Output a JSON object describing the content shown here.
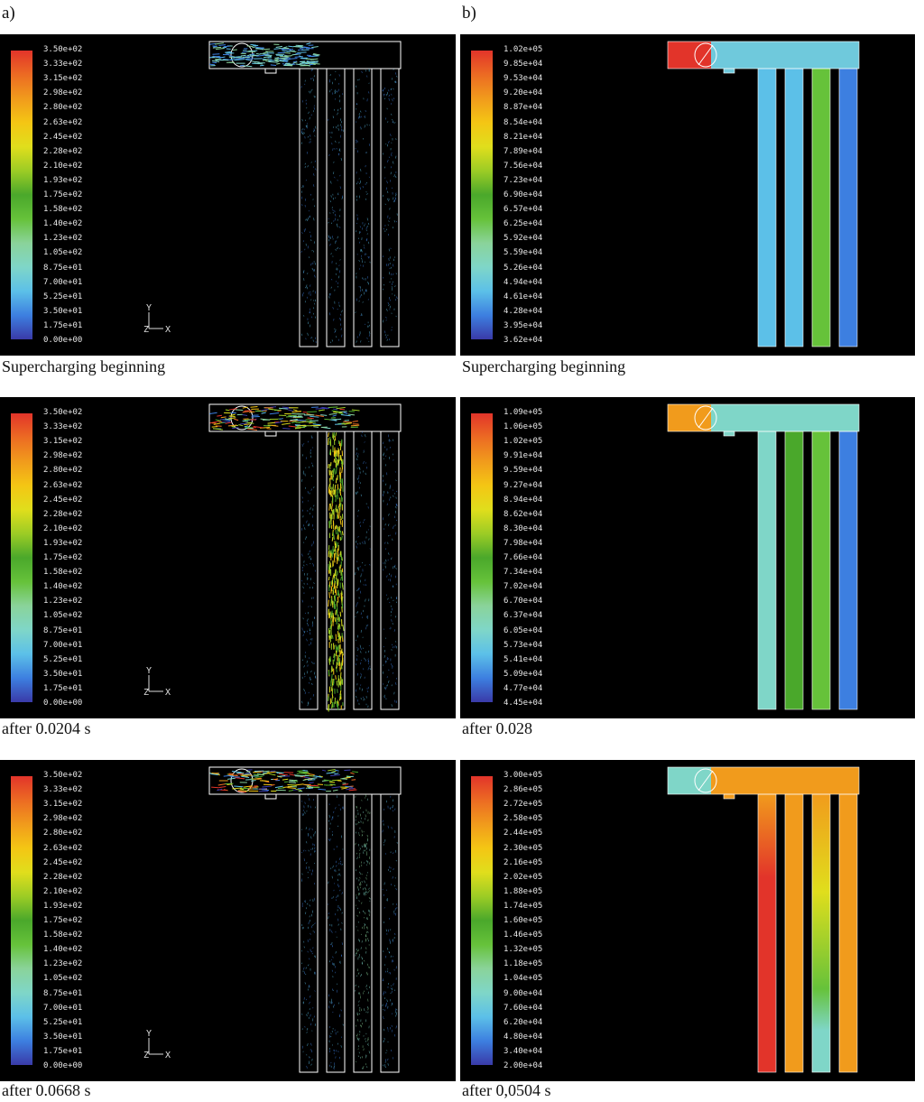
{
  "columns": {
    "left": "a)",
    "right": "b)"
  },
  "colors": {
    "background": "#000000",
    "colormap": [
      "#3a3aa8",
      "#3d7fe0",
      "#5cc0e8",
      "#7fd6c8",
      "#8ad39a",
      "#66c23a",
      "#4aa82b",
      "#9ccc25",
      "#e0de1c",
      "#f4c614",
      "#f19b1c",
      "#ec6b23",
      "#e2342a"
    ],
    "pressure_fill_1": "#5ec6e6",
    "pressure_fill_1b": "#6fc9dc",
    "pressure_fill_2": "#7ed3c6"
  },
  "panels": [
    {
      "id": "a1",
      "type": "velocity-vectors",
      "caption": "Supercharging beginning",
      "ticks": [
        "3.50e+02",
        "3.33e+02",
        "3.15e+02",
        "2.98e+02",
        "2.80e+02",
        "2.63e+02",
        "2.45e+02",
        "2.28e+02",
        "2.10e+02",
        "1.93e+02",
        "1.75e+02",
        "1.58e+02",
        "1.40e+02",
        "1.23e+02",
        "1.05e+02",
        "8.75e+01",
        "7.00e+01",
        "5.25e+01",
        "3.50e+01",
        "1.75e+01",
        "0.00e+00"
      ]
    },
    {
      "id": "b1",
      "type": "pressure-contours",
      "caption": "Supercharging beginning",
      "ticks": [
        "1.02e+05",
        "9.85e+04",
        "9.53e+04",
        "9.20e+04",
        "8.87e+04",
        "8.54e+04",
        "8.21e+04",
        "7.89e+04",
        "7.56e+04",
        "7.23e+04",
        "6.90e+04",
        "6.57e+04",
        "6.25e+04",
        "5.92e+04",
        "5.59e+04",
        "5.26e+04",
        "4.94e+04",
        "4.61e+04",
        "4.28e+04",
        "3.95e+04",
        "3.62e+04"
      ]
    },
    {
      "id": "a2",
      "type": "velocity-vectors",
      "caption": "after 0.0204 s",
      "ticks": [
        "3.50e+02",
        "3.33e+02",
        "3.15e+02",
        "2.98e+02",
        "2.80e+02",
        "2.63e+02",
        "2.45e+02",
        "2.28e+02",
        "2.10e+02",
        "1.93e+02",
        "1.75e+02",
        "1.58e+02",
        "1.40e+02",
        "1.23e+02",
        "1.05e+02",
        "8.75e+01",
        "7.00e+01",
        "5.25e+01",
        "3.50e+01",
        "1.75e+01",
        "0.00e+00"
      ]
    },
    {
      "id": "b2",
      "type": "pressure-contours",
      "caption": "after 0.028",
      "ticks": [
        "1.09e+05",
        "1.06e+05",
        "1.02e+05",
        "9.91e+04",
        "9.59e+04",
        "9.27e+04",
        "8.94e+04",
        "8.62e+04",
        "8.30e+04",
        "7.98e+04",
        "7.66e+04",
        "7.34e+04",
        "7.02e+04",
        "6.70e+04",
        "6.37e+04",
        "6.05e+04",
        "5.73e+04",
        "5.41e+04",
        "5.09e+04",
        "4.77e+04",
        "4.45e+04"
      ]
    },
    {
      "id": "a3",
      "type": "velocity-vectors",
      "caption": "after 0.0668 s",
      "ticks": [
        "3.50e+02",
        "3.33e+02",
        "3.15e+02",
        "2.98e+02",
        "2.80e+02",
        "2.63e+02",
        "2.45e+02",
        "2.28e+02",
        "2.10e+02",
        "1.93e+02",
        "1.75e+02",
        "1.58e+02",
        "1.40e+02",
        "1.23e+02",
        "1.05e+02",
        "8.75e+01",
        "7.00e+01",
        "5.25e+01",
        "3.50e+01",
        "1.75e+01",
        "0.00e+00"
      ]
    },
    {
      "id": "b3",
      "type": "pressure-contours",
      "caption": "after 0,0504 s",
      "ticks": [
        "3.00e+05",
        "2.86e+05",
        "2.72e+05",
        "2.58e+05",
        "2.44e+05",
        "2.30e+05",
        "2.16e+05",
        "2.02e+05",
        "1.88e+05",
        "1.74e+05",
        "1.60e+05",
        "1.46e+05",
        "1.32e+05",
        "1.18e+05",
        "1.04e+05",
        "9.00e+04",
        "7.60e+04",
        "6.20e+04",
        "4.80e+04",
        "3.40e+04",
        "2.00e+04"
      ]
    }
  ],
  "axis_triad": {
    "y": "Y",
    "z": "Z",
    "x": "X"
  }
}
